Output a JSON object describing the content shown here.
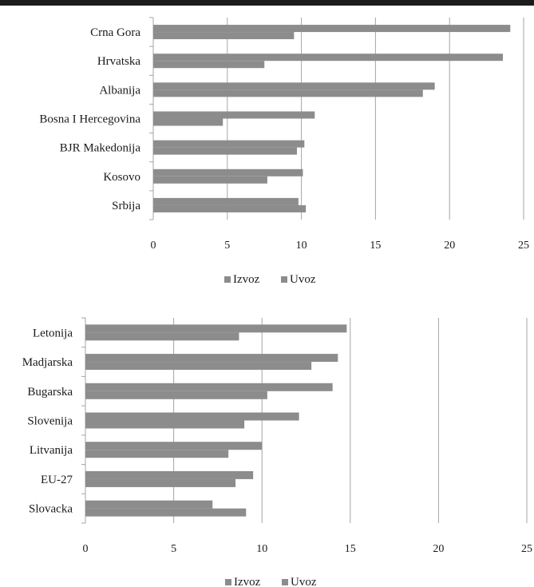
{
  "colors": {
    "izvoz": "#8c8c8c",
    "uvoz": "#8c8c8c",
    "grid": "#a6a6a6",
    "axis": "#a6a6a6",
    "text": "#1a1a1a",
    "topbar": "#1c1c1c"
  },
  "legend": {
    "izvoz_label": "Izvoz",
    "uvoz_label": "Uvoz"
  },
  "chart_data": [
    {
      "type": "bar",
      "orientation": "horizontal",
      "categories": [
        "Crna Gora",
        "Hrvatska",
        "Albanija",
        "Bosna I Hercegovina",
        "BJR Makedonija",
        "Kosovo",
        "Srbija"
      ],
      "series": [
        {
          "name": "Izvoz",
          "values": [
            24.1,
            23.6,
            19.0,
            10.9,
            10.2,
            10.1,
            9.8
          ]
        },
        {
          "name": "Uvoz",
          "values": [
            9.5,
            7.5,
            18.2,
            4.7,
            9.7,
            7.7,
            10.3
          ]
        }
      ],
      "xlim": [
        0,
        25
      ],
      "xticks": [
        "0",
        "5",
        "10",
        "15",
        "20",
        "25"
      ],
      "grid": "vertical",
      "legend_position": "bottom"
    },
    {
      "type": "bar",
      "orientation": "horizontal",
      "categories": [
        "Letonija",
        "Madjarska",
        "Bugarska",
        "Slovenija",
        "Litvanija",
        "EU-27",
        "Slovacka"
      ],
      "series": [
        {
          "name": "Izvoz",
          "values": [
            14.8,
            14.3,
            14.0,
            12.1,
            10.0,
            9.5,
            7.2
          ]
        },
        {
          "name": "Uvoz",
          "values": [
            8.7,
            12.8,
            10.3,
            9.0,
            8.1,
            8.5,
            9.1
          ]
        }
      ],
      "xlim": [
        0,
        25
      ],
      "xticks": [
        "0",
        "5",
        "10",
        "15",
        "20",
        "25"
      ],
      "grid": "vertical",
      "legend_position": "bottom"
    }
  ]
}
